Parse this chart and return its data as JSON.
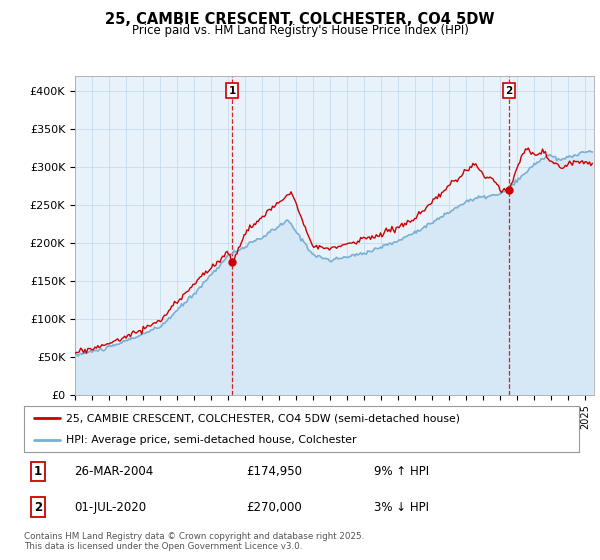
{
  "title": "25, CAMBIE CRESCENT, COLCHESTER, CO4 5DW",
  "subtitle": "Price paid vs. HM Land Registry's House Price Index (HPI)",
  "ylabel_ticks": [
    "£0",
    "£50K",
    "£100K",
    "£150K",
    "£200K",
    "£250K",
    "£300K",
    "£350K",
    "£400K"
  ],
  "ytick_values": [
    0,
    50000,
    100000,
    150000,
    200000,
    250000,
    300000,
    350000,
    400000
  ],
  "ylim": [
    0,
    420000
  ],
  "xlim_start": 1995.0,
  "xlim_end": 2025.5,
  "hpi_color": "#7bafd4",
  "hpi_fill_color": "#d6e8f5",
  "price_color": "#cc0000",
  "marker1_x": 2004.23,
  "marker1_y": 174950,
  "marker2_x": 2020.5,
  "marker2_y": 270000,
  "legend_price_label": "25, CAMBIE CRESCENT, COLCHESTER, CO4 5DW (semi-detached house)",
  "legend_hpi_label": "HPI: Average price, semi-detached house, Colchester",
  "annotation1_num": "1",
  "annotation1_date": "26-MAR-2004",
  "annotation1_price": "£174,950",
  "annotation1_hpi": "9% ↑ HPI",
  "annotation2_num": "2",
  "annotation2_date": "01-JUL-2020",
  "annotation2_price": "£270,000",
  "annotation2_hpi": "3% ↓ HPI",
  "footer": "Contains HM Land Registry data © Crown copyright and database right 2025.\nThis data is licensed under the Open Government Licence v3.0.",
  "background_color": "#ffffff",
  "chart_bg_color": "#e8f2fb",
  "grid_color": "#c0d8ee"
}
